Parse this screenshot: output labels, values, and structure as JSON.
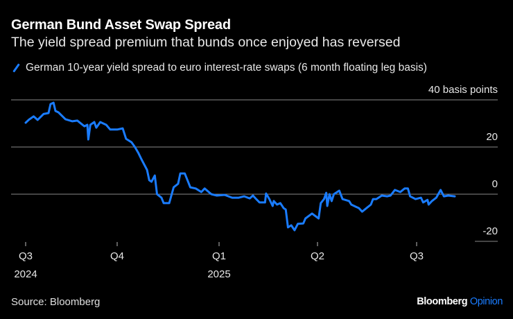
{
  "header": {
    "title": "German Bund Asset Swap Spread",
    "subtitle": "The yield spread premium that bunds once enjoyed has reversed"
  },
  "footer": {
    "source": "Source: Bloomberg",
    "brand_main": "Bloomberg",
    "brand_accent": "Opinion"
  },
  "colors": {
    "series": "#1a7cff",
    "grid": "#8a8a8a",
    "background": "#000000"
  },
  "chart_data": {
    "type": "line",
    "title": "German Bund Asset Swap Spread",
    "subtitle": "The yield spread premium that bunds once enjoyed has reversed",
    "ylabel": "basis points",
    "ylim": [
      -20,
      40
    ],
    "y_ticks": [
      {
        "value": 40,
        "label": "40 basis points"
      },
      {
        "value": 20,
        "label": "20"
      },
      {
        "value": 0,
        "label": "0"
      },
      {
        "value": -20,
        "label": "-20"
      }
    ],
    "x_ticks": [
      {
        "date": "2024-07-01",
        "label": "Q3",
        "sublabel": "2024"
      },
      {
        "date": "2024-10-01",
        "label": "Q4",
        "sublabel": ""
      },
      {
        "date": "2025-01-01",
        "label": "Q1",
        "sublabel": "2025"
      },
      {
        "date": "2025-04-01",
        "label": "Q2",
        "sublabel": ""
      },
      {
        "date": "2025-07-01",
        "label": "Q3",
        "sublabel": ""
      }
    ],
    "grid": true,
    "legend_position": "top-left",
    "series": [
      {
        "name": "German 10-year yield spread to euro interest-rate swaps (6 month floating leg basis)",
        "color": "#1a7cff",
        "points": [
          [
            "2024-07-01",
            30.3
          ],
          [
            "2024-07-04",
            31.5
          ],
          [
            "2024-07-09",
            33
          ],
          [
            "2024-07-13",
            31.5
          ],
          [
            "2024-07-19",
            34
          ],
          [
            "2024-07-24",
            34.4
          ],
          [
            "2024-07-26",
            38.2
          ],
          [
            "2024-07-29",
            38.8
          ],
          [
            "2024-07-31",
            35.3
          ],
          [
            "2024-08-03",
            34.7
          ],
          [
            "2024-08-10",
            31.8
          ],
          [
            "2024-08-17",
            30.9
          ],
          [
            "2024-08-22",
            31.2
          ],
          [
            "2024-08-29",
            28.8
          ],
          [
            "2024-09-01",
            29.4
          ],
          [
            "2024-09-02",
            23.2
          ],
          [
            "2024-09-04",
            29.4
          ],
          [
            "2024-09-08",
            30.6
          ],
          [
            "2024-09-10",
            28.2
          ],
          [
            "2024-09-14",
            30.6
          ],
          [
            "2024-09-17",
            30
          ],
          [
            "2024-09-20",
            29.4
          ],
          [
            "2024-09-24",
            27.4
          ],
          [
            "2024-10-01",
            27.4
          ],
          [
            "2024-10-06",
            27.9
          ],
          [
            "2024-10-09",
            23.5
          ],
          [
            "2024-10-14",
            22
          ],
          [
            "2024-10-17",
            20
          ],
          [
            "2024-10-20",
            17.6
          ],
          [
            "2024-10-23",
            14.7
          ],
          [
            "2024-10-28",
            10.3
          ],
          [
            "2024-10-30",
            5.9
          ],
          [
            "2024-11-01",
            5.3
          ],
          [
            "2024-11-04",
            7.9
          ],
          [
            "2024-11-06",
            0
          ],
          [
            "2024-11-10",
            -1.5
          ],
          [
            "2024-11-12",
            -3.8
          ],
          [
            "2024-11-17",
            -3.8
          ],
          [
            "2024-11-21",
            2.9
          ],
          [
            "2024-11-25",
            4.4
          ],
          [
            "2024-11-27",
            8.8
          ],
          [
            "2024-12-01",
            8.8
          ],
          [
            "2024-12-04",
            5.3
          ],
          [
            "2024-12-06",
            2.9
          ],
          [
            "2024-12-11",
            2.4
          ],
          [
            "2024-12-16",
            0.9
          ],
          [
            "2024-12-19",
            2.4
          ],
          [
            "2024-12-25",
            0
          ],
          [
            "2024-12-30",
            -0.6
          ],
          [
            "2025-01-06",
            -0.3
          ],
          [
            "2025-01-13",
            -1.5
          ],
          [
            "2025-01-19",
            -1.5
          ],
          [
            "2025-01-24",
            -0.9
          ],
          [
            "2025-01-29",
            -1.8
          ],
          [
            "2025-02-01",
            -0.6
          ],
          [
            "2025-02-04",
            -2.1
          ],
          [
            "2025-02-07",
            -3.5
          ],
          [
            "2025-02-12",
            -3.5
          ],
          [
            "2025-02-13",
            0.3
          ],
          [
            "2025-02-16",
            -2.1
          ],
          [
            "2025-02-19",
            -5
          ],
          [
            "2025-02-20",
            -2.9
          ],
          [
            "2025-02-23",
            -4.4
          ],
          [
            "2025-02-26",
            -3.8
          ],
          [
            "2025-03-01",
            -5.9
          ],
          [
            "2025-03-03",
            -6.5
          ],
          [
            "2025-03-05",
            -14.1
          ],
          [
            "2025-03-08",
            -13.2
          ],
          [
            "2025-03-11",
            -15.3
          ],
          [
            "2025-03-14",
            -12.6
          ],
          [
            "2025-03-19",
            -12.4
          ],
          [
            "2025-03-21",
            -10.3
          ],
          [
            "2025-03-27",
            -8.2
          ],
          [
            "2025-04-02",
            -10.3
          ],
          [
            "2025-04-04",
            -3.8
          ],
          [
            "2025-04-07",
            -2.1
          ],
          [
            "2025-04-09",
            0.6
          ],
          [
            "2025-04-10",
            -5
          ],
          [
            "2025-04-12",
            0
          ],
          [
            "2025-04-14",
            -2.9
          ],
          [
            "2025-04-16",
            0
          ],
          [
            "2025-04-21",
            1.5
          ],
          [
            "2025-04-24",
            -2.1
          ],
          [
            "2025-04-30",
            -2.9
          ],
          [
            "2025-05-02",
            -4.4
          ],
          [
            "2025-05-06",
            -5.3
          ],
          [
            "2025-05-09",
            -5.9
          ],
          [
            "2025-05-12",
            -7.4
          ],
          [
            "2025-05-16",
            -5.9
          ],
          [
            "2025-05-20",
            -4.4
          ],
          [
            "2025-05-22",
            -2.1
          ],
          [
            "2025-05-25",
            -2.1
          ],
          [
            "2025-05-30",
            -0.6
          ],
          [
            "2025-06-04",
            -0.9
          ],
          [
            "2025-06-07",
            -0.6
          ],
          [
            "2025-06-11",
            1.8
          ],
          [
            "2025-06-16",
            0.9
          ],
          [
            "2025-06-20",
            2.4
          ],
          [
            "2025-06-23",
            2.4
          ],
          [
            "2025-06-25",
            -0.9
          ],
          [
            "2025-06-30",
            -2.1
          ],
          [
            "2025-07-05",
            -1.5
          ],
          [
            "2025-07-07",
            -3.5
          ],
          [
            "2025-07-11",
            -2.4
          ],
          [
            "2025-07-12",
            -4.4
          ],
          [
            "2025-07-15",
            -2.9
          ],
          [
            "2025-07-19",
            -1.5
          ],
          [
            "2025-07-23",
            1.8
          ],
          [
            "2025-07-26",
            -0.9
          ],
          [
            "2025-07-30",
            -0.6
          ],
          [
            "2025-08-05",
            -0.9
          ]
        ]
      }
    ]
  }
}
